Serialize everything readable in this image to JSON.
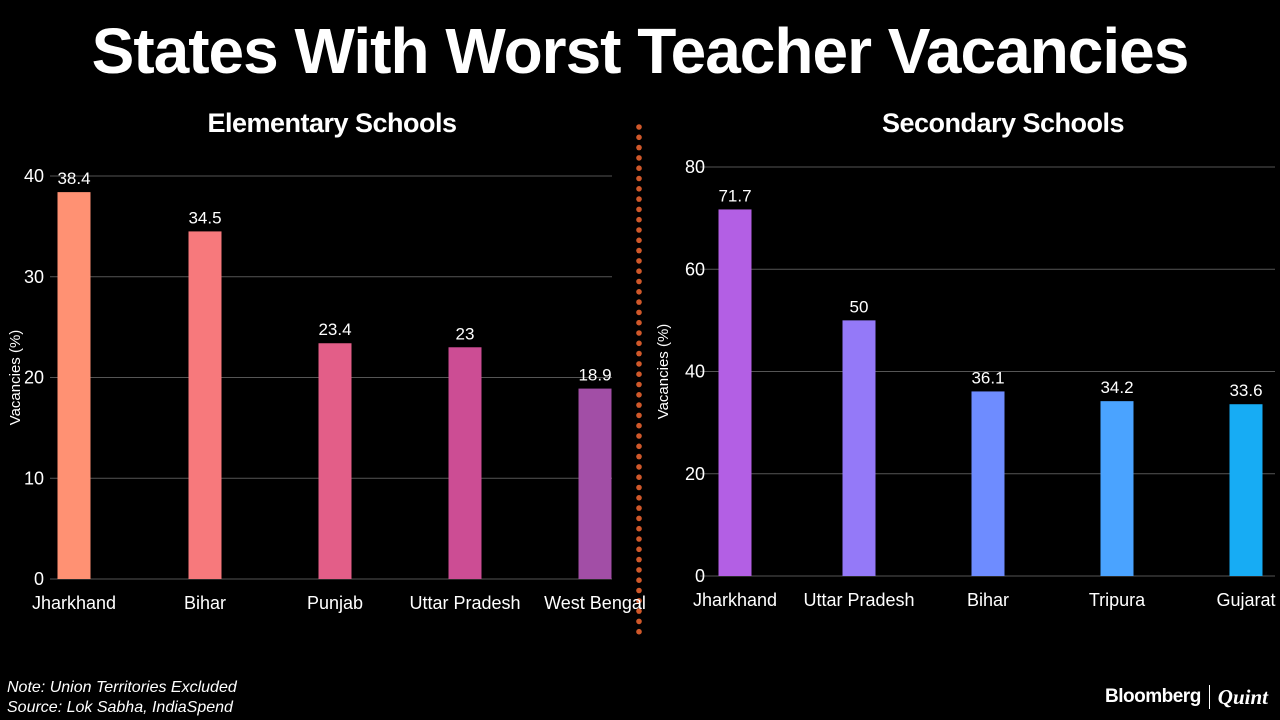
{
  "title": "States With Worst Teacher Vacancies",
  "colors": {
    "background": "#000000",
    "text": "#ffffff",
    "grid": "#555555",
    "divider": "#d0582a"
  },
  "chart_data": [
    {
      "type": "bar",
      "title": "Elementary Schools",
      "xlabel": "",
      "ylabel": "Vacancies (%)",
      "ylim": [
        0,
        40
      ],
      "yticks": [
        0,
        10,
        20,
        30,
        40
      ],
      "grid": true,
      "categories": [
        "Jharkhand",
        "Bihar",
        "Punjab",
        "Uttar Pradesh",
        "West Bengal"
      ],
      "values": [
        38.4,
        34.5,
        23.4,
        23,
        18.9
      ],
      "bar_colors": [
        "#ff9173",
        "#f7797c",
        "#e35e88",
        "#cc4d94",
        "#a24ea6"
      ]
    },
    {
      "type": "bar",
      "title": "Secondary Schools",
      "xlabel": "",
      "ylabel": "Vacancies (%)",
      "ylim": [
        0,
        80
      ],
      "yticks": [
        0,
        20,
        40,
        60,
        80
      ],
      "grid": true,
      "categories": [
        "Jharkhand",
        "Uttar Pradesh",
        "Bihar",
        "Tripura",
        "Gujarat"
      ],
      "values": [
        71.7,
        50,
        36.1,
        34.2,
        33.6
      ],
      "bar_colors": [
        "#b35fe4",
        "#9479f8",
        "#6e8cff",
        "#4aa3ff",
        "#17acf4"
      ]
    }
  ],
  "footer": {
    "note": "Note: Union Territories Excluded",
    "source": "Source: Lok Sabha, IndiaSpend",
    "brand_primary": "Bloomberg",
    "brand_secondary": "Quint"
  }
}
